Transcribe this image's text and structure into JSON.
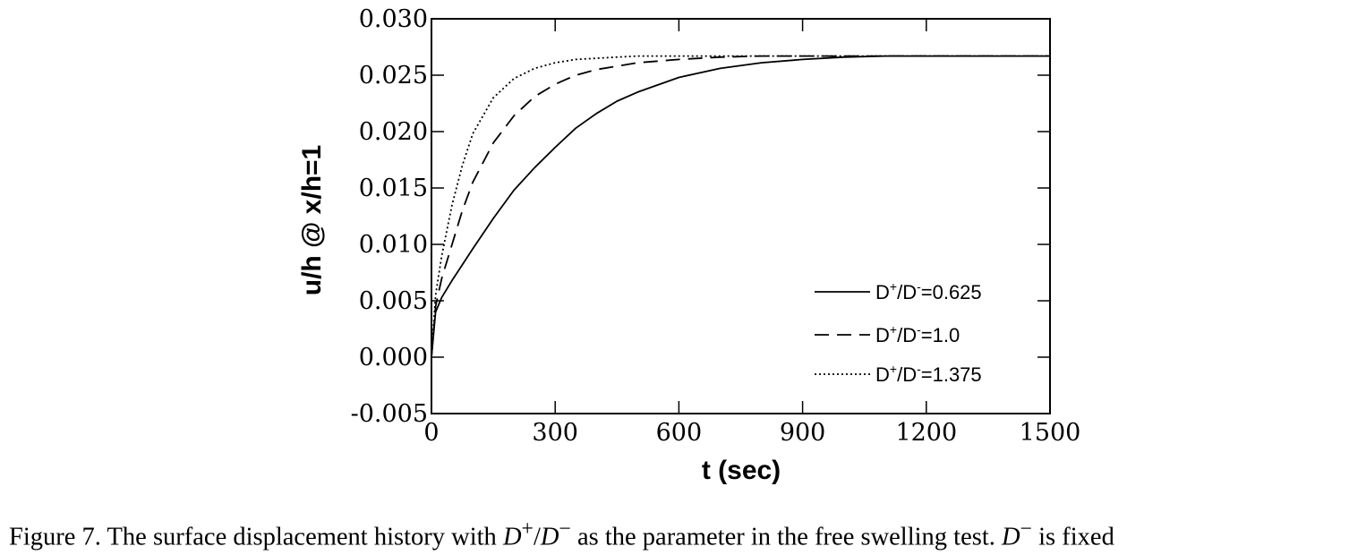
{
  "chart_data": {
    "type": "line",
    "xlabel": "t (sec)",
    "ylabel": "u/h @ x/h=1",
    "xlim": [
      0,
      1500
    ],
    "ylim": [
      -0.005,
      0.03
    ],
    "xticks": [
      0,
      300,
      600,
      900,
      1200,
      1500
    ],
    "xtick_labels": [
      "0",
      "300",
      "600",
      "900",
      "1200",
      "1500"
    ],
    "yticks": [
      -0.005,
      0.0,
      0.005,
      0.01,
      0.015,
      0.02,
      0.025,
      0.03
    ],
    "ytick_labels": [
      "-0.005",
      "0.000",
      "0.005",
      "0.010",
      "0.015",
      "0.020",
      "0.025",
      "0.030"
    ],
    "grid": false,
    "legend_position": "lower-right",
    "series": [
      {
        "legend_base": "D",
        "legend_sup1": "+",
        "legend_mid": "/D",
        "legend_sup2": "-",
        "legend_value": "=0.625",
        "style": "solid",
        "x": [
          0,
          10,
          25,
          50,
          75,
          100,
          150,
          200,
          250,
          300,
          350,
          400,
          450,
          500,
          600,
          700,
          800,
          900,
          1000,
          1100,
          1200,
          1300,
          1400,
          1500
        ],
        "y": [
          0.0,
          0.004,
          0.0053,
          0.0068,
          0.0082,
          0.0096,
          0.0123,
          0.0148,
          0.0168,
          0.0186,
          0.0203,
          0.0216,
          0.0227,
          0.0235,
          0.0248,
          0.0256,
          0.0261,
          0.0264,
          0.0266,
          0.0267,
          0.0267,
          0.0267,
          0.0267,
          0.0267
        ]
      },
      {
        "legend_base": "D",
        "legend_sup1": "+",
        "legend_mid": "/D",
        "legend_sup2": "-",
        "legend_value": "=1.0",
        "style": "dashed",
        "x": [
          0,
          10,
          25,
          50,
          75,
          100,
          150,
          200,
          250,
          300,
          350,
          400,
          450,
          500,
          600,
          700,
          800,
          900,
          1000,
          1200,
          1500
        ],
        "y": [
          0.0,
          0.0045,
          0.007,
          0.01,
          0.013,
          0.0155,
          0.019,
          0.0214,
          0.0231,
          0.0242,
          0.025,
          0.0255,
          0.0258,
          0.0261,
          0.0264,
          0.0266,
          0.0267,
          0.0267,
          0.0267,
          0.0267,
          0.0267
        ]
      },
      {
        "legend_base": "D",
        "legend_sup1": "+",
        "legend_mid": "/D",
        "legend_sup2": "-",
        "legend_value": "=1.375",
        "style": "dotted",
        "x": [
          0,
          10,
          25,
          50,
          75,
          100,
          150,
          200,
          250,
          300,
          350,
          400,
          450,
          500,
          600,
          700,
          800,
          1000,
          1200,
          1500
        ],
        "y": [
          0.0,
          0.0055,
          0.009,
          0.0135,
          0.017,
          0.0198,
          0.023,
          0.0247,
          0.0256,
          0.0261,
          0.0264,
          0.0265,
          0.0266,
          0.0267,
          0.0267,
          0.0267,
          0.0267,
          0.0267,
          0.0267,
          0.0267
        ]
      }
    ]
  },
  "caption": {
    "prefix": "Figure 7.  The surface displacement history with ",
    "d1": "D",
    "s1": "+",
    "slash": "/",
    "d2": "D",
    "s2": "−",
    "middle": " as the parameter in the free swelling test. ",
    "d3": "D",
    "s3": "−",
    "suffix": " is fixed"
  }
}
